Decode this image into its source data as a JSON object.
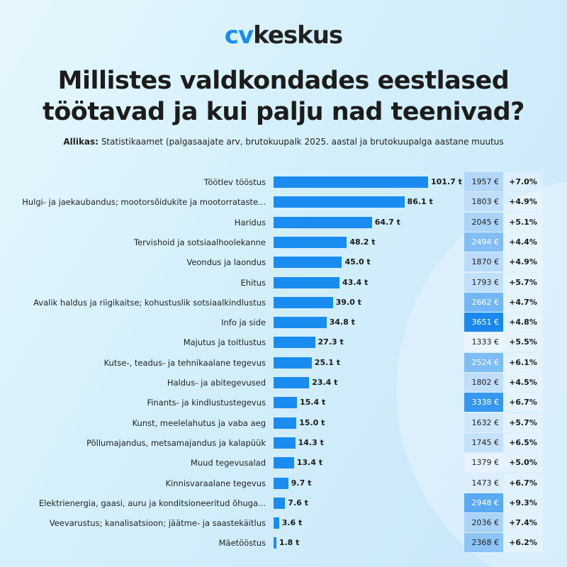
{
  "logo": {
    "cv": "cv",
    "name": "keskus"
  },
  "title": "Millistes valdkondades eestlased töötavad ja kui palju nad teenivad?",
  "source": {
    "label": "Allikas:",
    "text": "Statistikaamet (palgasaajate arv, brutokuupalk 2025. aastal ja brutokuupalga aastane muutus"
  },
  "colors": {
    "bar": "#1a8cf0",
    "salary_low": "#eaf4fd",
    "salary_high": "#1a88ee"
  },
  "chart_data": {
    "type": "bar",
    "orientation": "horizontal",
    "value_unit": "t",
    "categories": [
      "Töötlev tööstus",
      "Hulgi- ja jaekaubandus; mootorsõidukite ja mootorrataste...",
      "Haridus",
      "Tervishoid ja sotsiaalhoolekanne",
      "Veondus ja laondus",
      "Ehitus",
      "Avalik haldus ja riigikaitse; kohustuslik sotsiaalkindlustus",
      "Info ja side",
      "Majutus ja toitlustus",
      "Kutse-, teadus- ja tehnikaalane tegevus",
      "Haldus- ja abitegevused",
      "Finants- ja kindlustustegevus",
      "Kunst, meelelahutus ja vaba aeg",
      "Põllumajandus, metsamajandus ja kalapüük",
      "Muud tegevusalad",
      "Kinnisvaraalane tegevus",
      "Elektrienergia, gaasi, auru ja konditsioneeritud õhuga...",
      "Veevarustus; kanalisatsioon; jäätme- ja saastekäitlus",
      "Mäetööstus"
    ],
    "values": [
      101.7,
      86.1,
      64.7,
      48.2,
      45.0,
      43.4,
      39.0,
      34.8,
      27.3,
      25.1,
      23.4,
      15.4,
      15.0,
      14.3,
      13.4,
      9.7,
      7.6,
      3.6,
      1.8
    ],
    "value_labels": [
      "101.7 t",
      "86.1 t",
      "64.7 t",
      "48.2 t",
      "45.0 t",
      "43.4 t",
      "39.0 t",
      "34.8 t",
      "27.3 t",
      "25.1 t",
      "23.4 t",
      "15.4 t",
      "15.0 t",
      "14.3 t",
      "13.4 t",
      "9.7 t",
      "7.6 t",
      "3.6 t",
      "1.8 t"
    ],
    "salary": [
      1957,
      1803,
      2045,
      2494,
      1870,
      1793,
      2662,
      3651,
      1333,
      2524,
      1802,
      3338,
      1632,
      1745,
      1379,
      1473,
      2948,
      2036,
      2368
    ],
    "salary_labels": [
      "1957 €",
      "1803 €",
      "2045 €",
      "2494 €",
      "1870 €",
      "1793 €",
      "2662 €",
      "3651 €",
      "1333 €",
      "2524 €",
      "1802 €",
      "3338 €",
      "1632 €",
      "1745 €",
      "1379 €",
      "1473 €",
      "2948 €",
      "2036 €",
      "2368 €"
    ],
    "change_labels": [
      "+7.0%",
      "+4.9%",
      "+5.1%",
      "+4.4%",
      "+4.9%",
      "+5.7%",
      "+4.7%",
      "+4.8%",
      "+5.5%",
      "+6.1%",
      "+4.5%",
      "+6.7%",
      "+5.7%",
      "+6.5%",
      "+5.0%",
      "+6.7%",
      "+9.3%",
      "+7.4%",
      "+6.2%"
    ],
    "change": [
      7.0,
      4.9,
      5.1,
      4.4,
      4.9,
      5.7,
      4.7,
      4.8,
      5.5,
      6.1,
      4.5,
      6.7,
      5.7,
      6.5,
      5.0,
      6.7,
      9.3,
      7.4,
      6.2
    ]
  }
}
